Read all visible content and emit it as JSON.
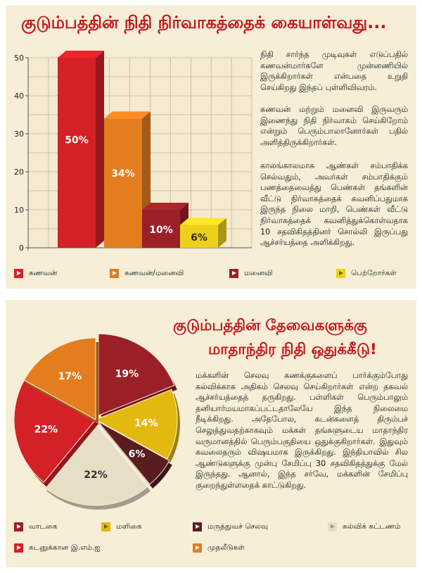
{
  "chart_data": [
    {
      "type": "bar",
      "title": "குடும்பத்தின் நிதி நிர்வாகத்தைக் கையாள்வது...",
      "categories": [
        "கணவன்",
        "கணவன்/மனைவி",
        "மனைவி",
        "பெற்றோர்கள்"
      ],
      "values": [
        50,
        34,
        10,
        6
      ],
      "data_labels": [
        "50%",
        "34%",
        "10%",
        "6%"
      ],
      "colors": [
        "#d42027",
        "#e37d1e",
        "#9b1f27",
        "#ecd01c"
      ],
      "ylim": [
        0,
        50
      ],
      "yticks": [
        "0",
        "10",
        "20",
        "30",
        "40",
        "50"
      ],
      "grid": true,
      "legend": "bottom"
    },
    {
      "type": "pie",
      "title_line1": "குடும்பத்தின் தேவைகளுக்கு",
      "title_line2": "மாதாந்திர நிதி ஒதுக்கீடு!",
      "categories": [
        "வாடகை",
        "மளிகை",
        "மருத்துவச் செலவு",
        "கல்விக் கட்டணம்",
        "கடனுக்கான இ.எம்.ஐ",
        "முதலீடுகள்"
      ],
      "values": [
        19,
        14,
        6,
        22,
        22,
        17
      ],
      "data_labels": [
        "19%",
        "14%",
        "6%",
        "22%",
        "22%",
        "17%"
      ],
      "colors": [
        "#9b1f27",
        "#e3b90f",
        "#5a1d1f",
        "#e6dfc6",
        "#d42027",
        "#e37d1e"
      ],
      "legend": "bottom"
    }
  ],
  "text1": "நிதி சார்ந்த முடிவுகள் எடுப்பதில் கணவன்மார்களே முன்னணியில் இருக்கிறார்கள் என்பதை உறுதி செய்கிறது இந்தப் புள்ளிவிவரம்.",
  "text2": "கணவன் மற்றும் மனைவி இருவரும் இணைந்து நிதி நிர்வாகம் செய்கிறோம் என்றும் பெரும்பாலானோர்கள் பதில் அளித்திருக்கிறார்கள்.",
  "text3": "காலங்காலமாக ஆண்கள் சம்பாதிக்க செல்வதும், அவர்கள் சம்பாதிக்கும் பணத்தைவைத்து பெண்கள் தங்களின் வீட்டு நிர்வாகத்தைக் கவனிப்பதுமாக இருந்த நிலை மாறி, பெண்கள் வீட்டு நிர்வாகத்தைக் கவனித்துக்கொள்வதாக 10 சதவிகிதத்தினர் சொல்லி இருப்பது ஆச்சர்யத்தை அளிக்கிறது.",
  "text4": "மக்களின் செலவு கணக்குகளைப் பார்க்கும்போது கல்விக்காக அதிகம் செலவு செய்கிறார்கள் என்ற தகவல் ஆச்சர்யத்தைத் தருகிறது. பள்ளிகள் பெரும்பாலும் தனியார்மயமாகப்பட்டதாலேயே இந்த நிலைமை நீடிக்கிறது. அதேபோல, கடன்களைத் திரும்பச் செலுத்துவதற்காகவும் மக்கள் தங்களுடைய மாதாந்திர வருமானத்தில் பெரும்பகுதியை ஒதுக்குகிறார்கள். இதுவும் கவலைதரும் விஷயமாக இருக்கிறது. இந்தியாவில் சில ஆண்டுகளுக்கு முன்பு சேமிப்பு 30 சதவிகிதத்துக்கு மேல் இருந்தது. ஆனால், இந்த சர்வே, மக்களின் சேமிப்பு குறைந்துள்ளதைக் காட்டுகிறது."
}
